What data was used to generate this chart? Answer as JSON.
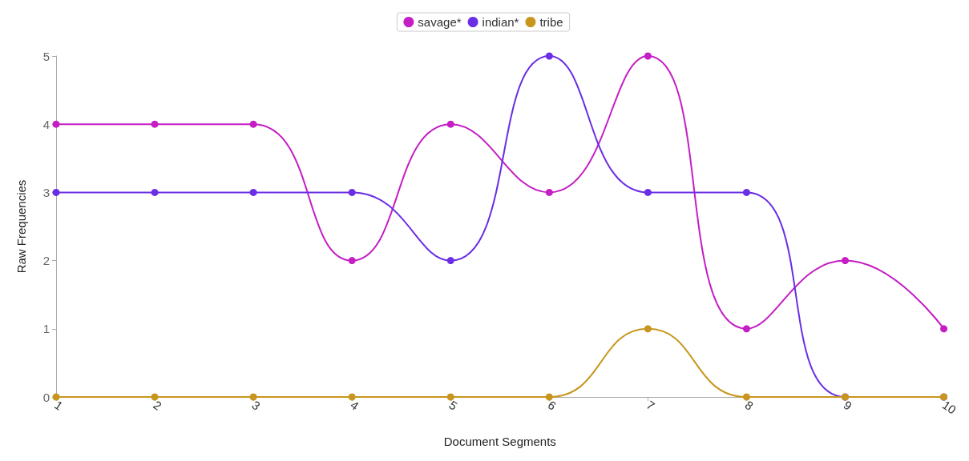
{
  "chart_data": {
    "type": "line",
    "xlabel": "Document Segments",
    "ylabel": "Raw Frequencies",
    "x": [
      1,
      2,
      3,
      4,
      5,
      6,
      7,
      8,
      9,
      10
    ],
    "series": [
      {
        "name": "savage*",
        "color": "#c41ec4",
        "values": [
          4,
          4,
          4,
          2,
          4,
          3,
          5,
          1,
          2,
          1
        ]
      },
      {
        "name": "indian*",
        "color": "#6a2ee6",
        "values": [
          3,
          3,
          3,
          3,
          2,
          5,
          3,
          3,
          0,
          0
        ]
      },
      {
        "name": "tribe",
        "color": "#c8961e",
        "values": [
          0,
          0,
          0,
          0,
          0,
          0,
          1,
          0,
          0,
          0
        ]
      }
    ],
    "xlim": [
      1,
      10
    ],
    "xticks": [
      1,
      2,
      3,
      4,
      5,
      6,
      7,
      8,
      9,
      10
    ],
    "ylim": [
      0,
      5
    ],
    "yticks": [
      0,
      1,
      2,
      3,
      4,
      5
    ],
    "grid": false,
    "legend": "top",
    "marker": "circle",
    "line_style": "solid"
  }
}
